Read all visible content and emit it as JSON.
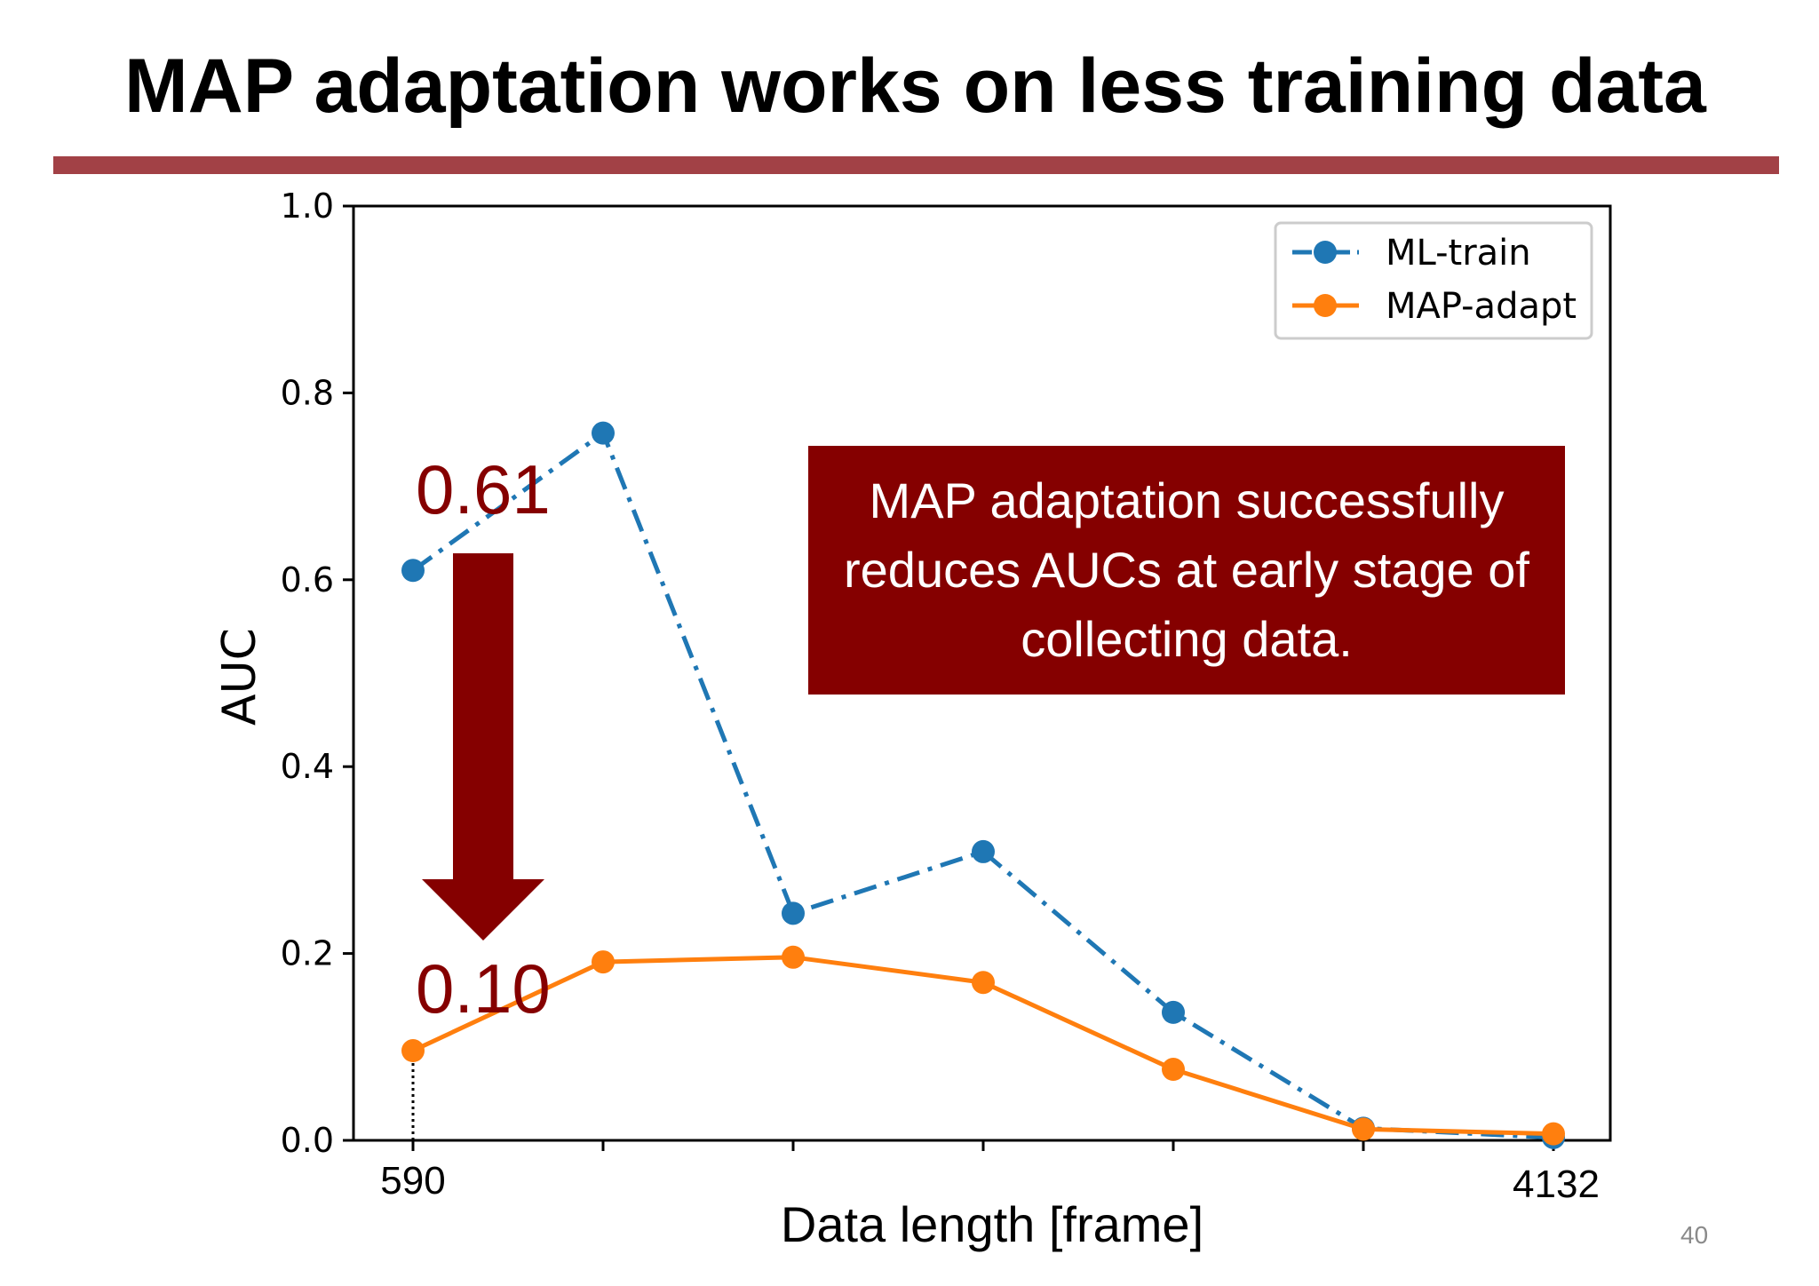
{
  "slide": {
    "title": "MAP adaptation works on less training data",
    "page_number": "40",
    "callout": "MAP adaptation successfully reduces AUCs at early stage of collecting data.",
    "annotation_high": "0.61",
    "annotation_low": "0.10",
    "x_start_label": "590",
    "x_end_label": "4132"
  },
  "colors": {
    "accent": "#a24146",
    "dark_red": "#850000",
    "ml_train": "#1f77b4",
    "map_adapt": "#ff7f0e"
  },
  "chart_data": {
    "type": "line",
    "title": "",
    "xlabel": "Data length [frame]",
    "ylabel": "AUC",
    "ylim": [
      0.0,
      1.0
    ],
    "yticks": [
      "0.0",
      "0.2",
      "0.4",
      "0.6",
      "0.8",
      "1.0"
    ],
    "x_index": [
      0,
      1,
      2,
      3,
      4,
      5,
      6
    ],
    "legend_position": "top-right",
    "grid": false,
    "series": [
      {
        "name": "ML-train",
        "style": "dash-dot",
        "color": "#1f77b4",
        "values": [
          0.61,
          0.757,
          0.243,
          0.309,
          0.137,
          0.013,
          0.003
        ]
      },
      {
        "name": "MAP-adapt",
        "style": "solid",
        "color": "#ff7f0e",
        "values": [
          0.096,
          0.191,
          0.196,
          0.169,
          0.076,
          0.012,
          0.007
        ]
      }
    ]
  }
}
